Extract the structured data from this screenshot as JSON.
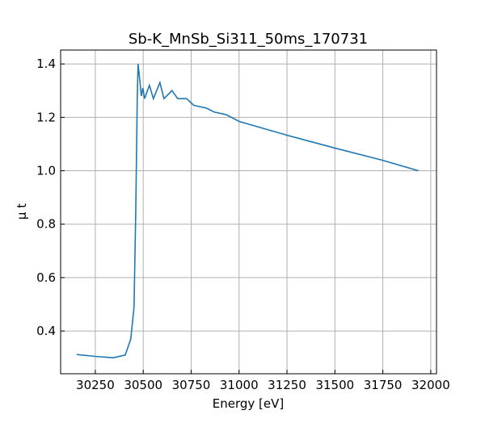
{
  "chart_data": {
    "type": "line",
    "title": "Sb-K_MnSb_Si311_50ms_170731",
    "x_label": "Energy [eV]",
    "y_label": "μ t",
    "xlim": [
      30069,
      32030
    ],
    "ylim": [
      0.24,
      1.452
    ],
    "xticks": [
      30250,
      30500,
      30750,
      31000,
      31250,
      31500,
      31750,
      32000
    ],
    "yticks": [
      {
        "value": 0.4,
        "label": "0.4"
      },
      {
        "value": 0.6,
        "label": "0.6"
      },
      {
        "value": 0.8,
        "label": "0.8"
      },
      {
        "value": 1.0,
        "label": "1.0"
      },
      {
        "value": 1.2,
        "label": "1.2"
      },
      {
        "value": 1.4,
        "label": "1.4"
      }
    ],
    "grid": true,
    "x": [
      30153,
      30250,
      30343,
      30406,
      30435,
      30452,
      30461,
      30469,
      30473,
      30482,
      30490,
      30498,
      30507,
      30532,
      30553,
      30587,
      30608,
      30650,
      30680,
      30726,
      30764,
      30828,
      30870,
      30933,
      31000,
      31250,
      31500,
      31750,
      31936
    ],
    "series": [
      {
        "name": "Sb-K_MnSb_Si311_50ms_170731",
        "color": "#1f77b4",
        "values": [
          0.312,
          0.305,
          0.3,
          0.31,
          0.37,
          0.49,
          0.85,
          1.28,
          1.4,
          1.34,
          1.28,
          1.31,
          1.27,
          1.32,
          1.27,
          1.33,
          1.27,
          1.3,
          1.27,
          1.27,
          1.245,
          1.235,
          1.22,
          1.21,
          1.185,
          1.133,
          1.085,
          1.039,
          1.0
        ]
      }
    ]
  }
}
